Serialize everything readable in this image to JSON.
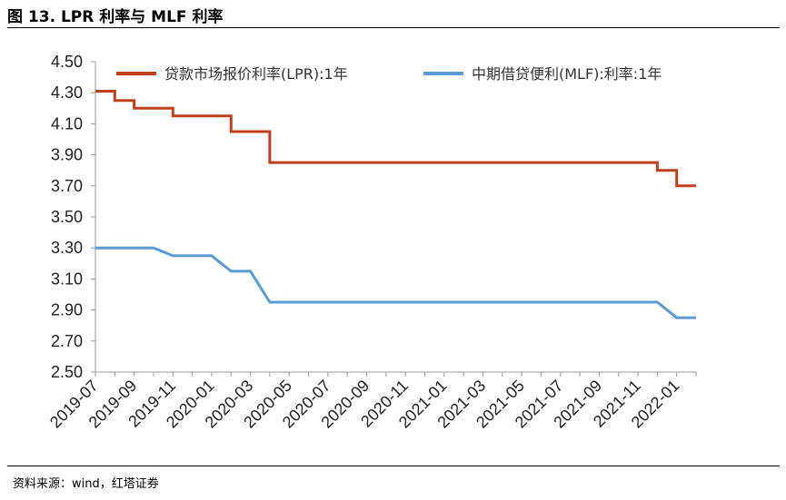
{
  "header": {
    "title": "图 13. LPR 利率与 MLF 利率"
  },
  "footer": {
    "source": "资料来源：wind，红塔证券"
  },
  "chart_data": {
    "type": "line",
    "title": "",
    "xlabel": "",
    "ylabel": "",
    "ylim": [
      2.5,
      4.5
    ],
    "yticks": [
      "4.50",
      "4.30",
      "4.10",
      "3.90",
      "3.70",
      "3.50",
      "3.30",
      "3.10",
      "2.90",
      "2.70",
      "2.50"
    ],
    "xticks": [
      "2019-07",
      "2019-09",
      "2019-11",
      "2020-01",
      "2020-03",
      "2020-05",
      "2020-07",
      "2020-09",
      "2020-11",
      "2021-01",
      "2021-03",
      "2021-05",
      "2021-07",
      "2021-09",
      "2021-11",
      "2022-01"
    ],
    "xlim": [
      "2019-07",
      "2022-02"
    ],
    "legend_position": "top",
    "grid": false,
    "series": [
      {
        "name": "贷款市场报价利率(LPR):1年",
        "color": "#C0401E",
        "points": [
          [
            "2019-07",
            4.31
          ],
          [
            "2019-08",
            4.31
          ],
          [
            "2019-08",
            4.25
          ],
          [
            "2019-09",
            4.25
          ],
          [
            "2019-09",
            4.2
          ],
          [
            "2019-11",
            4.2
          ],
          [
            "2019-11",
            4.15
          ],
          [
            "2020-02",
            4.15
          ],
          [
            "2020-02",
            4.05
          ],
          [
            "2020-04",
            4.05
          ],
          [
            "2020-04",
            3.85
          ],
          [
            "2021-12",
            3.85
          ],
          [
            "2021-12",
            3.8
          ],
          [
            "2022-01",
            3.8
          ],
          [
            "2022-01",
            3.7
          ],
          [
            "2022-02",
            3.7
          ]
        ]
      },
      {
        "name": "中期借贷便利(MLF):利率:1年",
        "color": "#5B9BD5",
        "points": [
          [
            "2019-07",
            3.3
          ],
          [
            "2019-10",
            3.3
          ],
          [
            "2019-11",
            3.25
          ],
          [
            "2020-01",
            3.25
          ],
          [
            "2020-02",
            3.15
          ],
          [
            "2020-03",
            3.15
          ],
          [
            "2020-04",
            2.95
          ],
          [
            "2021-12",
            2.95
          ],
          [
            "2022-01",
            2.85
          ],
          [
            "2022-02",
            2.85
          ]
        ]
      }
    ]
  }
}
